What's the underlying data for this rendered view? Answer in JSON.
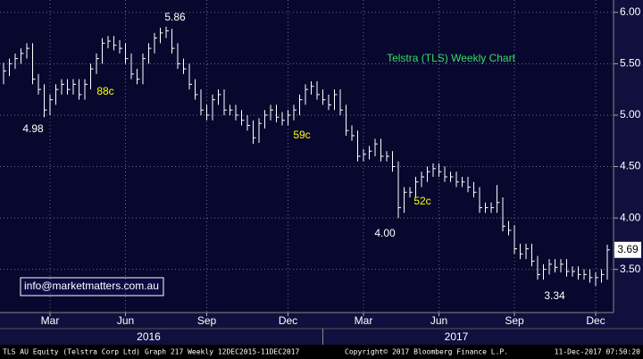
{
  "chart_data": {
    "type": "ohlc",
    "color": "#ffffff",
    "grid": true,
    "ylim": [
      3.08,
      6.12
    ],
    "yticks": [
      {
        "value": 3.5,
        "label": "3.50"
      },
      {
        "value": 4,
        "label": "4.00"
      },
      {
        "value": 4.5,
        "label": "4.50"
      },
      {
        "value": 5,
        "label": "5.00"
      },
      {
        "value": 5.5,
        "label": "5.50"
      },
      {
        "value": 6,
        "label": "6.00"
      }
    ],
    "categories": [
      null,
      null,
      null,
      null,
      null,
      null,
      null,
      null,
      "Mar",
      null,
      null,
      null,
      null,
      null,
      null,
      null,
      null,
      null,
      null,
      null,
      null,
      "Jun",
      null,
      null,
      null,
      null,
      null,
      null,
      null,
      null,
      null,
      null,
      null,
      null,
      null,
      "Sep",
      null,
      null,
      null,
      null,
      null,
      null,
      null,
      null,
      null,
      null,
      null,
      null,
      null,
      "Dec",
      null,
      null,
      null,
      null,
      null,
      null,
      null,
      null,
      null,
      null,
      null,
      null,
      "Mar",
      null,
      null,
      null,
      null,
      null,
      null,
      null,
      null,
      null,
      null,
      null,
      null,
      "Jun",
      null,
      null,
      null,
      null,
      null,
      null,
      null,
      null,
      null,
      null,
      null,
      null,
      "Sep",
      null,
      null,
      null,
      null,
      null,
      null,
      null,
      null,
      null,
      null,
      null,
      null,
      null,
      "Dec",
      null,
      null
    ],
    "high": [
      5.51,
      5.55,
      5.6,
      5.65,
      5.7,
      5.7,
      5.4,
      5.3,
      5.2,
      5.3,
      5.35,
      5.35,
      5.35,
      5.35,
      5.35,
      5.5,
      5.6,
      5.75,
      5.77,
      5.77,
      5.73,
      5.7,
      5.6,
      5.45,
      5.6,
      5.7,
      5.8,
      5.85,
      5.86,
      5.84,
      5.7,
      5.55,
      5.5,
      5.35,
      5.25,
      5.1,
      5.2,
      5.25,
      5.25,
      5.1,
      5.1,
      5.05,
      5.0,
      4.95,
      4.97,
      5.05,
      5.1,
      5.1,
      5.03,
      5.05,
      5.1,
      5.2,
      5.3,
      5.33,
      5.33,
      5.25,
      5.2,
      5.25,
      5.25,
      5.1,
      4.9,
      4.85,
      4.67,
      4.7,
      4.77,
      4.77,
      4.65,
      4.65,
      4.55,
      4.3,
      4.3,
      4.4,
      4.45,
      4.5,
      4.53,
      4.53,
      4.5,
      4.45,
      4.45,
      4.4,
      4.4,
      4.35,
      4.3,
      4.15,
      4.15,
      4.32,
      4.2,
      3.97,
      3.93,
      3.75,
      3.75,
      3.75,
      3.63,
      3.55,
      3.6,
      3.6,
      3.6,
      3.6,
      3.53,
      3.53,
      3.5,
      3.5,
      3.47,
      3.5,
      3.74
    ],
    "low": [
      5.3,
      5.38,
      5.45,
      5.5,
      5.55,
      5.3,
      5.2,
      4.98,
      5.0,
      5.1,
      5.2,
      5.2,
      5.2,
      5.15,
      5.15,
      5.25,
      5.4,
      5.5,
      5.65,
      5.63,
      5.6,
      5.5,
      5.35,
      5.3,
      5.3,
      5.5,
      5.6,
      5.7,
      5.75,
      5.6,
      5.45,
      5.4,
      5.25,
      5.15,
      5.0,
      4.95,
      4.95,
      5.1,
      5.0,
      5.0,
      4.95,
      4.9,
      4.85,
      4.72,
      4.73,
      4.87,
      4.95,
      4.93,
      4.9,
      4.9,
      4.95,
      5.0,
      5.1,
      5.2,
      5.15,
      5.1,
      5.05,
      5.05,
      5.0,
      4.8,
      4.75,
      4.55,
      4.55,
      4.57,
      4.6,
      4.55,
      4.55,
      4.45,
      4.0,
      4.05,
      4.2,
      4.2,
      4.3,
      4.35,
      4.4,
      4.4,
      4.35,
      4.35,
      4.3,
      4.3,
      4.25,
      4.2,
      4.05,
      4.05,
      4.05,
      4.05,
      3.87,
      3.83,
      3.65,
      3.6,
      3.6,
      3.53,
      3.4,
      3.4,
      3.45,
      3.47,
      3.47,
      3.43,
      3.43,
      3.4,
      3.4,
      3.37,
      3.34,
      3.37,
      3.4
    ],
    "close": [
      5.43,
      5.5,
      5.55,
      5.6,
      5.65,
      5.35,
      5.25,
      5.05,
      5.15,
      5.25,
      5.3,
      5.25,
      5.3,
      5.2,
      5.3,
      5.45,
      5.55,
      5.7,
      5.72,
      5.68,
      5.65,
      5.55,
      5.4,
      5.35,
      5.55,
      5.65,
      5.75,
      5.8,
      5.82,
      5.65,
      5.5,
      5.45,
      5.3,
      5.2,
      5.05,
      5.0,
      5.15,
      5.2,
      5.05,
      5.05,
      5.0,
      4.95,
      4.9,
      4.78,
      4.92,
      5.0,
      5.05,
      4.98,
      4.95,
      5.0,
      5.05,
      5.15,
      5.25,
      5.28,
      5.2,
      5.15,
      5.1,
      5.2,
      5.05,
      4.85,
      4.8,
      4.6,
      4.62,
      4.65,
      4.72,
      4.6,
      4.6,
      4.5,
      4.1,
      4.25,
      4.25,
      4.35,
      4.4,
      4.45,
      4.48,
      4.45,
      4.4,
      4.4,
      4.35,
      4.35,
      4.3,
      4.25,
      4.1,
      4.1,
      4.1,
      4.15,
      3.92,
      3.88,
      3.7,
      3.65,
      3.7,
      3.58,
      3.45,
      3.5,
      3.55,
      3.52,
      3.55,
      3.48,
      3.48,
      3.45,
      3.45,
      3.42,
      3.42,
      3.45,
      3.69
    ],
    "years": [
      "2016",
      "2017"
    ],
    "annotations": [
      {
        "text": "5.86",
        "color": "#ffffff"
      },
      {
        "text": "4.98",
        "color": "#ffffff"
      },
      {
        "text": "88c",
        "color": "#ffff00"
      },
      {
        "text": "59c",
        "color": "#ffff00"
      },
      {
        "text": "4.00",
        "color": "#ffffff"
      },
      {
        "text": "52c",
        "color": "#ffff00"
      },
      {
        "text": "3.34",
        "color": "#ffffff"
      },
      {
        "text": "Telstra (TLS) Weekly Chart",
        "color": "#33dd66"
      }
    ],
    "info_box": "info@marketmatters.com.au",
    "footer": [
      "TLS AU Equity (Telstra Corp Ltd) Graph 217  Weekly 12DEC2015-11DEC2017",
      "Copyright© 2017 Bloomberg Finance L.P.",
      "11-Dec-2017 07:50:20"
    ]
  }
}
